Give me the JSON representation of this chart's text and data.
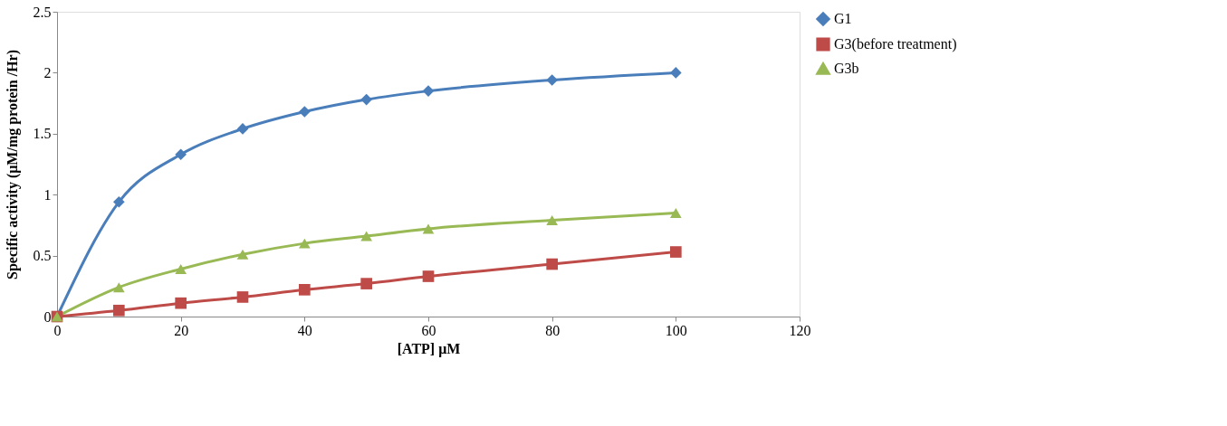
{
  "chart_data": {
    "type": "line",
    "xlabel": "[ATP] μM",
    "ylabel": "Specific activity (μM/mg protein /Hr)",
    "x": [
      0,
      10,
      20,
      30,
      40,
      50,
      60,
      80,
      100
    ],
    "series": [
      {
        "name": "G1",
        "color": "#4a7ebb",
        "marker": "diamond",
        "values": [
          0,
          0.94,
          1.33,
          1.54,
          1.68,
          1.78,
          1.85,
          1.94,
          2.0
        ]
      },
      {
        "name": "G3(before treatment)",
        "color": "#be4b48",
        "marker": "square",
        "values": [
          0,
          0.05,
          0.11,
          0.16,
          0.22,
          0.27,
          0.33,
          0.43,
          0.53
        ]
      },
      {
        "name": "G3b",
        "color": "#98b954",
        "marker": "triangle",
        "values": [
          0,
          0.24,
          0.39,
          0.51,
          0.6,
          0.66,
          0.72,
          0.79,
          0.85
        ]
      }
    ],
    "xlim": [
      0,
      120
    ],
    "xticks": [
      0,
      20,
      40,
      60,
      80,
      100,
      120
    ],
    "ylim": [
      0,
      2.5
    ],
    "yticks": [
      0,
      0.5,
      1,
      1.5,
      2,
      2.5
    ],
    "grid": false,
    "legend": "right",
    "line_style": "solid"
  }
}
